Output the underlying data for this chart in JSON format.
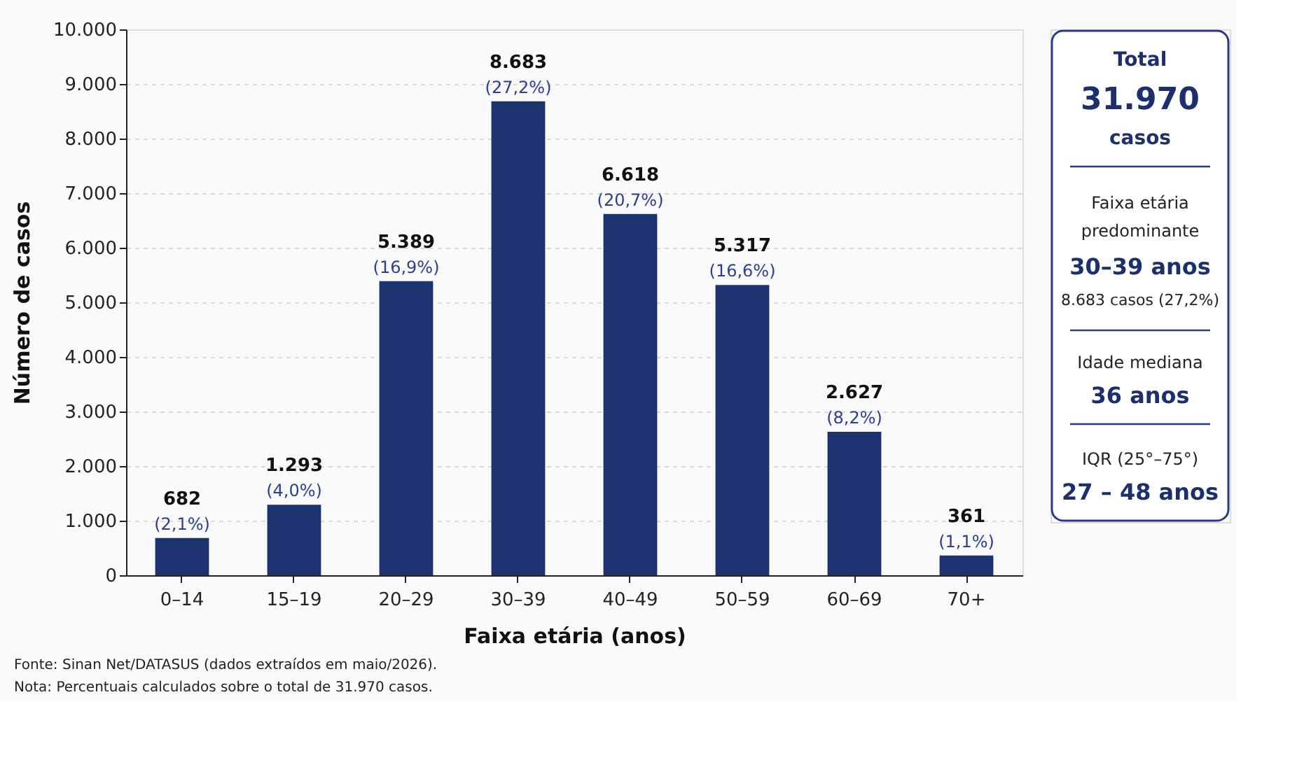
{
  "chart_data": [
    {
      "type": "bar",
      "xlabel": "Faixa etária (anos)",
      "ylabel": "Número de casos",
      "categories": [
        "0–14",
        "15–19",
        "20–29",
        "30–39",
        "40–49",
        "50–59",
        "60–69",
        "70+"
      ],
      "values": [
        682,
        1293,
        5389,
        8683,
        6618,
        5317,
        2627,
        361
      ],
      "value_labels": [
        "682 (2,1%)",
        "1.293 (4,0%)",
        "5.389 (16,9%)",
        "8.683 (27,2%)",
        "6.618 (20,7%)",
        "5.317 (16,6%)",
        "2.627 (8,2%)",
        "361 (1,1%)"
      ],
      "color": "#1c3370",
      "ylim": [
        0,
        10000
      ],
      "yticks": [
        0,
        {
          "value": 1000,
          "label": "1.000"
        },
        {
          "value": 2000,
          "label": "2.000"
        },
        {
          "value": 3000,
          "label": "3.000"
        },
        {
          "value": 4000,
          "label": "4.000"
        },
        {
          "value": 5000,
          "label": "5.000"
        },
        {
          "value": 6000,
          "label": "6.000"
        },
        {
          "value": 7000,
          "label": "7.000"
        },
        {
          "value": 8000,
          "label": "8.000"
        },
        {
          "value": 9000,
          "label": "9.000"
        },
        {
          "value": 10000,
          "label": "10.000"
        }
      ],
      "grid": "y",
      "annotations": [
        "Fonte: Sinan Net/DATASUS (dados extraídos em maio/2026).",
        "Nota: Percentuais calculados sobre o total de 31.970 casos."
      ]
    },
    {
      "type": "other",
      "annotations": [
        "Total",
        "31.970",
        "casos",
        "Faixa etária",
        "predominante",
        "30–39 anos",
        "8.683 casos (27,2%)",
        "Idade mediana",
        "36 anos",
        "IQR (25°–75°)",
        "27 – 48 anos"
      ]
    }
  ]
}
